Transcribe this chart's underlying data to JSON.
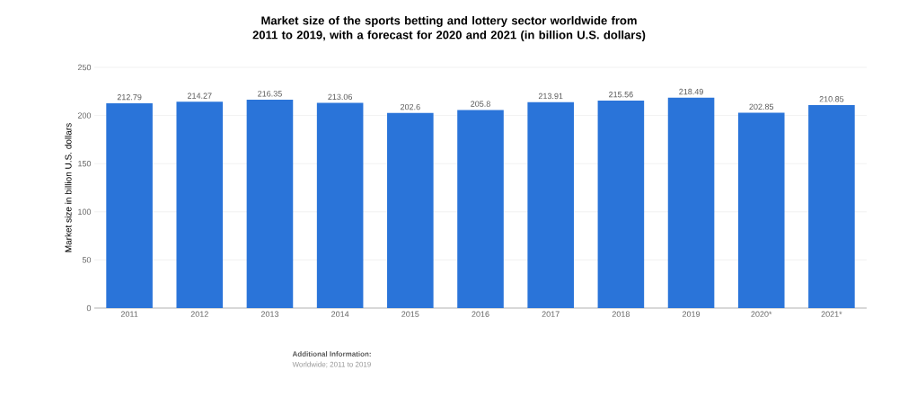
{
  "chart_data": {
    "type": "bar",
    "title": "Market size of the sports betting and lottery sector worldwide from 2011 to 2019, with a forecast for 2020 and 2021 (in billion U.S. dollars)",
    "ylabel": "Market size in billion U.S. dollars",
    "categories": [
      "2011",
      "2012",
      "2013",
      "2014",
      "2015",
      "2016",
      "2017",
      "2018",
      "2019",
      "2020*",
      "2021*"
    ],
    "values": [
      212.79,
      214.27,
      216.35,
      213.06,
      202.6,
      205.8,
      213.91,
      215.56,
      218.49,
      202.85,
      210.85
    ],
    "color": "#2a74d9",
    "ylim": [
      0,
      250
    ],
    "yticks": [
      0,
      50,
      100,
      150,
      200,
      250
    ],
    "grid": "y",
    "data_labels": true,
    "annotations": [
      "Additional Information:",
      "Worldwide; 2011 to 2019"
    ]
  }
}
